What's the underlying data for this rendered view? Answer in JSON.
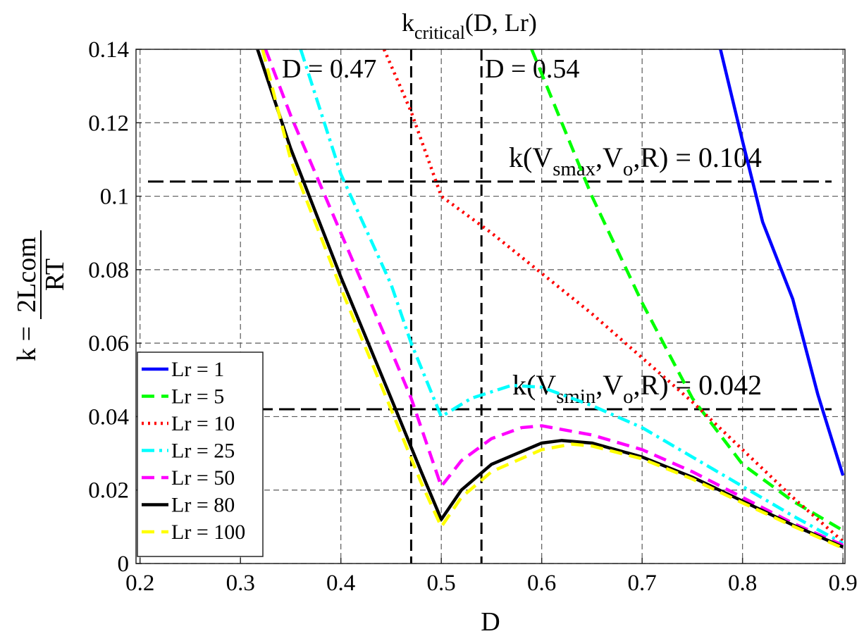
{
  "chart_data": {
    "type": "line",
    "title": [
      {
        "text": "k"
      },
      {
        "text": "critical",
        "sub": true
      },
      {
        "text": "(D, Lr)"
      }
    ],
    "xlabel": "D",
    "ylabel": {
      "lhs": "k =",
      "numerator": "2Lcom",
      "denominator": "RT"
    },
    "xlim": [
      0.196,
      0.902
    ],
    "ylim": [
      0,
      0.14
    ],
    "xticks": [
      0.2,
      0.3,
      0.4,
      0.5,
      0.6,
      0.7,
      0.8,
      0.9
    ],
    "yticks": [
      0,
      0.02,
      0.04,
      0.06,
      0.08,
      0.1,
      0.12,
      0.14
    ],
    "grid": true,
    "legend": "lower left",
    "series": [
      {
        "name": "Lr = 1",
        "color": "#0000ff",
        "style": "solid",
        "x": [
          0.778,
          0.8,
          0.82,
          0.85,
          0.875,
          0.9
        ],
        "values": [
          0.14,
          0.115,
          0.093,
          0.072,
          0.046,
          0.024
        ]
      },
      {
        "name": "Lr = 5",
        "color": "#00ff00",
        "style": "dashed",
        "x": [
          0.59,
          0.65,
          0.7,
          0.75,
          0.8,
          0.85,
          0.9
        ],
        "values": [
          0.14,
          0.1,
          0.071,
          0.045,
          0.027,
          0.017,
          0.009
        ]
      },
      {
        "name": "Lr = 10",
        "color": "#ff0000",
        "style": "dotted",
        "x": [
          0.443,
          0.47,
          0.5,
          0.55,
          0.6,
          0.65,
          0.7,
          0.75,
          0.8,
          0.85,
          0.9
        ],
        "values": [
          0.14,
          0.123,
          0.1,
          0.09,
          0.079,
          0.068,
          0.056,
          0.044,
          0.031,
          0.018,
          0.006
        ]
      },
      {
        "name": "Lr = 25",
        "color": "#00ffff",
        "style": "dashdot",
        "x": [
          0.36,
          0.4,
          0.45,
          0.47,
          0.5,
          0.53,
          0.57,
          0.6,
          0.65,
          0.7,
          0.75,
          0.8,
          0.85,
          0.9
        ],
        "values": [
          0.14,
          0.106,
          0.076,
          0.06,
          0.04,
          0.045,
          0.0485,
          0.048,
          0.043,
          0.037,
          0.029,
          0.021,
          0.013,
          0.0055
        ]
      },
      {
        "name": "Lr = 50",
        "color": "#ff00ff",
        "style": "dashed",
        "x": [
          0.325,
          0.35,
          0.4,
          0.45,
          0.47,
          0.5,
          0.52,
          0.55,
          0.58,
          0.6,
          0.65,
          0.7,
          0.75,
          0.8,
          0.85,
          0.9
        ],
        "values": [
          0.14,
          0.122,
          0.09,
          0.058,
          0.045,
          0.021,
          0.028,
          0.034,
          0.037,
          0.0375,
          0.035,
          0.031,
          0.025,
          0.018,
          0.011,
          0.005
        ]
      },
      {
        "name": "Lr = 80",
        "color": "#000000",
        "style": "solid",
        "x": [
          0.317,
          0.35,
          0.4,
          0.45,
          0.48,
          0.5,
          0.52,
          0.55,
          0.6,
          0.62,
          0.65,
          0.7,
          0.75,
          0.8,
          0.85,
          0.9
        ],
        "values": [
          0.14,
          0.113,
          0.078,
          0.045,
          0.025,
          0.012,
          0.02,
          0.027,
          0.0328,
          0.0335,
          0.0328,
          0.029,
          0.0235,
          0.017,
          0.0105,
          0.0045
        ]
      },
      {
        "name": "Lr = 100",
        "color": "#ffff00",
        "style": "dashed",
        "x": [
          0.322,
          0.35,
          0.4,
          0.45,
          0.48,
          0.5,
          0.52,
          0.55,
          0.6,
          0.63,
          0.65,
          0.7,
          0.75,
          0.8,
          0.85,
          0.9
        ],
        "values": [
          0.14,
          0.11,
          0.075,
          0.042,
          0.022,
          0.01,
          0.018,
          0.025,
          0.031,
          0.0325,
          0.032,
          0.0285,
          0.023,
          0.0165,
          0.0102,
          0.0042
        ]
      }
    ],
    "reference_lines": [
      {
        "axis": "x",
        "value": 0.47,
        "label": [
          {
            "text": "D = 0.47"
          }
        ]
      },
      {
        "axis": "x",
        "value": 0.54,
        "label": [
          {
            "text": "D = 0.54"
          }
        ]
      },
      {
        "axis": "y",
        "value": 0.104,
        "label": [
          {
            "text": "k(V"
          },
          {
            "text": "smax",
            "sub": true
          },
          {
            "text": ",V"
          },
          {
            "text": "o",
            "sub": true
          },
          {
            "text": ",R) = 0.104"
          }
        ]
      },
      {
        "axis": "y",
        "value": 0.042,
        "label": [
          {
            "text": "k(V"
          },
          {
            "text": "smin",
            "sub": true
          },
          {
            "text": ",V"
          },
          {
            "text": "o",
            "sub": true
          },
          {
            "text": ",R) = 0.042"
          }
        ]
      }
    ]
  }
}
